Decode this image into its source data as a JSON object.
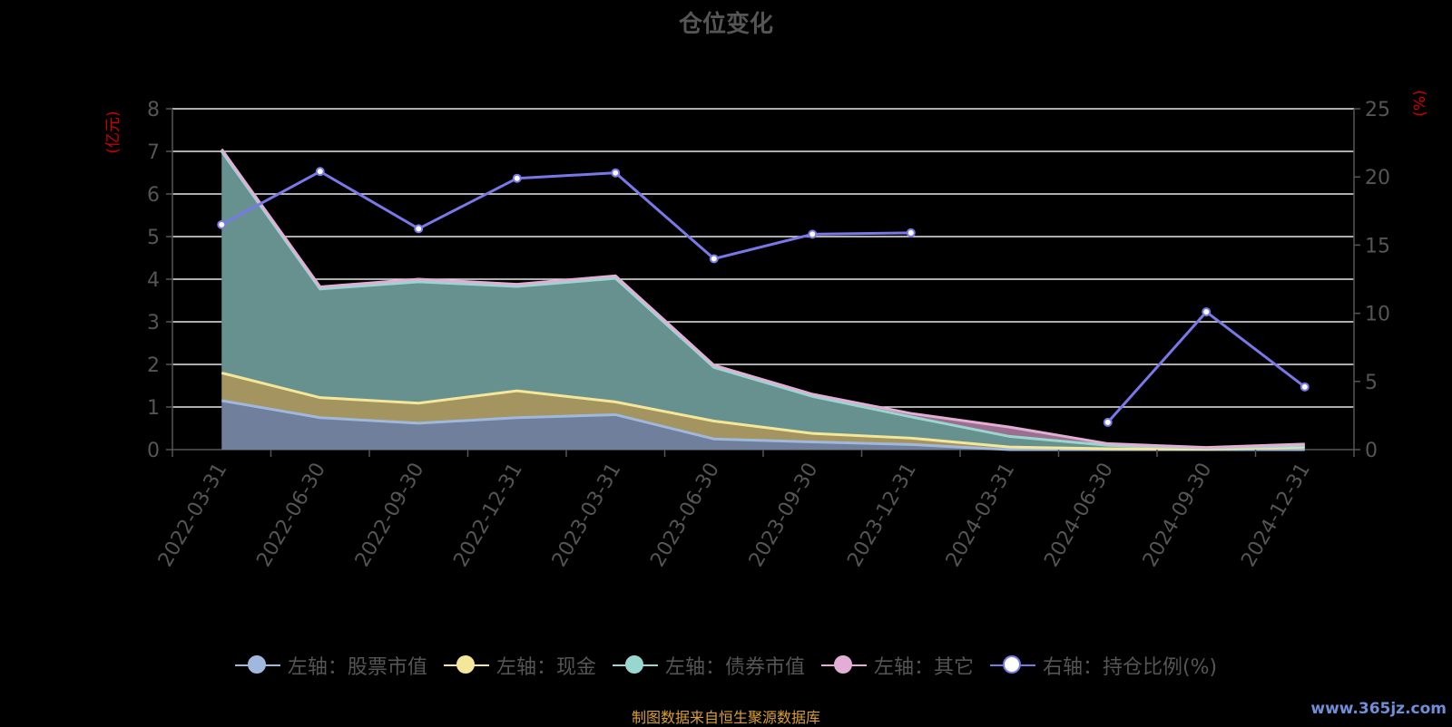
{
  "title": "仓位变化",
  "source_note": "制图数据来自恒生聚源数据库",
  "watermark": "www.365jz.com",
  "legend": [
    {
      "label": "左轴：股票市值",
      "line_color": "#a0b8de",
      "dot_color": "#a0b8de"
    },
    {
      "label": "左轴：现金",
      "line_color": "#f5e79a",
      "dot_color": "#f5e79a"
    },
    {
      "label": "左轴：债券市值",
      "line_color": "#9ad6d0",
      "dot_color": "#9ad6d0"
    },
    {
      "label": "左轴：其它",
      "line_color": "#e2aed6",
      "dot_color": "#e2aed6"
    },
    {
      "label": "右轴：持仓比例(%)",
      "line_color": "#7878e8",
      "dot_color": "#ffffff"
    }
  ],
  "chart_data": {
    "type": "area",
    "stacked": true,
    "x": [
      "2022-03-31",
      "2022-06-30",
      "2022-09-30",
      "2022-12-31",
      "2023-03-31",
      "2023-06-30",
      "2023-09-30",
      "2023-12-31",
      "2024-03-31",
      "2024-06-30",
      "2024-09-30",
      "2024-12-31"
    ],
    "left_axis": {
      "label": "(亿元)",
      "ylim": [
        0,
        8
      ],
      "ticks": [
        0,
        1,
        2,
        3,
        4,
        5,
        6,
        7,
        8
      ]
    },
    "right_axis": {
      "label": "(%)",
      "ylim": [
        0,
        25
      ],
      "ticks": [
        0,
        5,
        10,
        15,
        20,
        25
      ]
    },
    "series": [
      {
        "name": "左轴：股票市值",
        "axis": "left",
        "color": "#a0b8de",
        "fill": "#6f7f9c",
        "values": [
          1.15,
          0.75,
          0.62,
          0.75,
          0.82,
          0.25,
          0.18,
          0.12,
          0,
          0,
          0,
          0
        ]
      },
      {
        "name": "左轴：现金",
        "axis": "left",
        "color": "#f5e79a",
        "fill": "#a39460",
        "values": [
          0.65,
          0.47,
          0.47,
          0.63,
          0.3,
          0.42,
          0.2,
          0.15,
          0.06,
          0.02,
          0.01,
          0.06
        ]
      },
      {
        "name": "左轴：债券市值",
        "axis": "left",
        "color": "#9ad6d0",
        "fill": "#66918f",
        "values": [
          5.2,
          2.55,
          2.85,
          2.45,
          2.9,
          1.26,
          0.87,
          0.5,
          0.25,
          0.08,
          0.03,
          0.03
        ]
      },
      {
        "name": "左轴：其它",
        "axis": "left",
        "color": "#e2aed6",
        "fill": "#9a6f8f",
        "values": [
          0.05,
          0.05,
          0.06,
          0.05,
          0.06,
          0.05,
          0.05,
          0.08,
          0.22,
          0.04,
          0.01,
          0.04
        ]
      },
      {
        "name": "右轴：持仓比例(%)",
        "axis": "right",
        "type": "line",
        "color": "#7878e8",
        "values": [
          16.5,
          20.4,
          16.2,
          19.9,
          20.3,
          14.0,
          15.8,
          15.9,
          null,
          2.0,
          10.1,
          4.6
        ]
      }
    ]
  }
}
